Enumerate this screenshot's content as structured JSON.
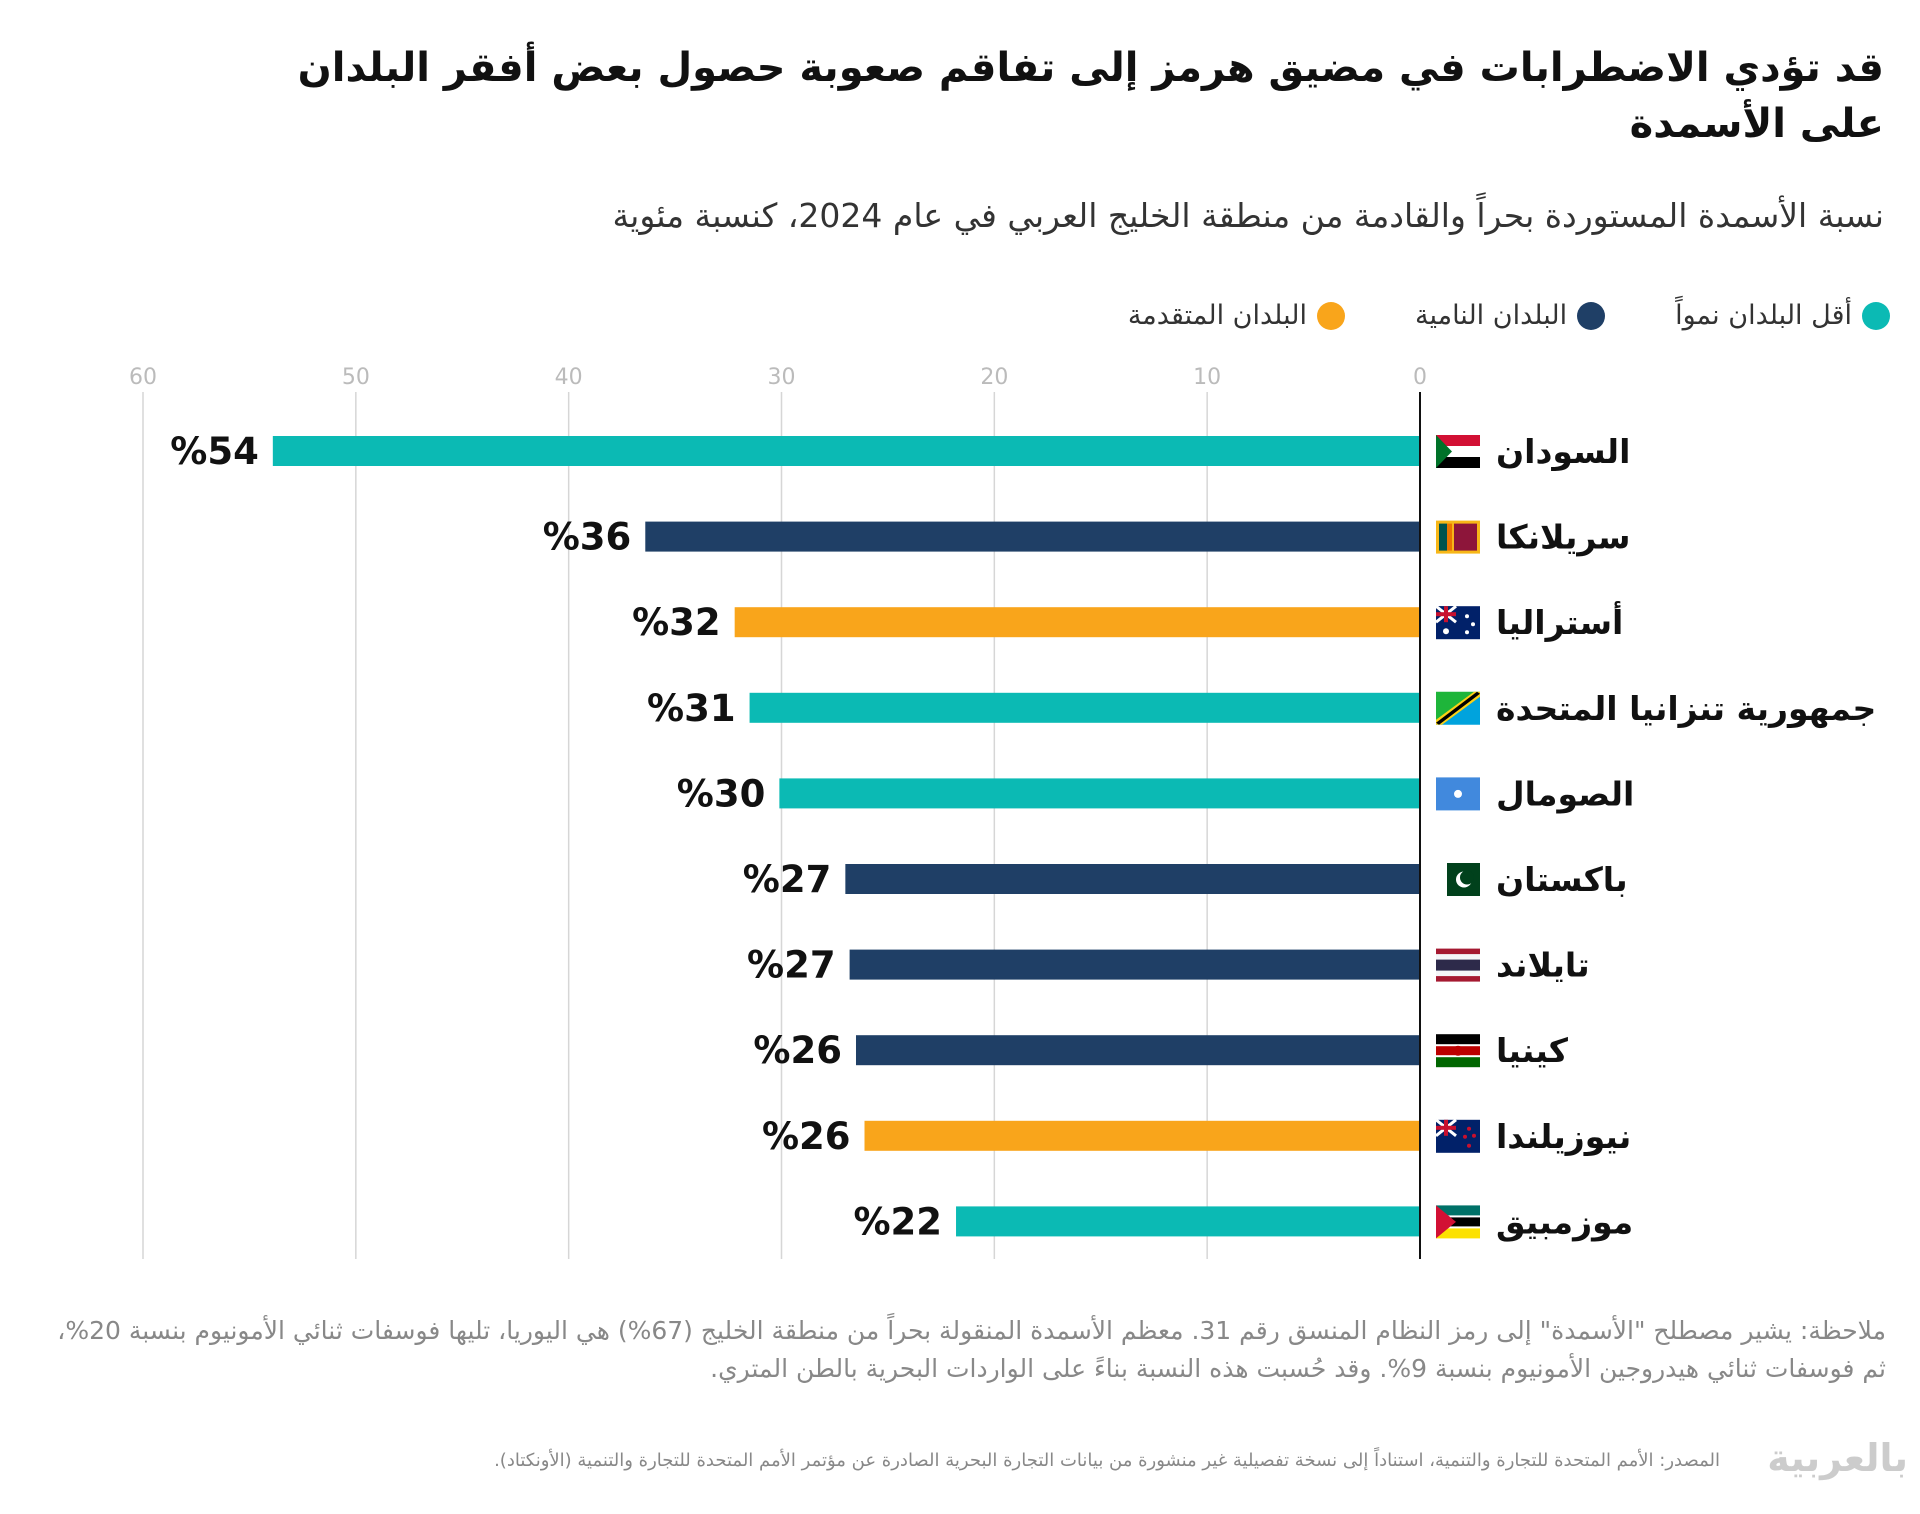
{
  "title": "قد تؤدي الاضطرابات في مضيق هرمز إلى تفاقم صعوبة حصول بعض أفقر البلدان على الأسمدة",
  "subtitle": "نسبة الأسمدة المستوردة بحراً والقادمة من منطقة الخليج العربي في عام 2024، كنسبة مئوية",
  "legend": [
    {
      "label": "أقل البلدان نمواً",
      "color": "#0bbab4"
    },
    {
      "label": "البلدان النامية",
      "color": "#1f3f66"
    },
    {
      "label": "البلدان المتقدمة",
      "color": "#f9a51b"
    }
  ],
  "chart_data": {
    "type": "bar",
    "orientation": "horizontal",
    "xlim": [
      0,
      60
    ],
    "x_direction": "right-to-left",
    "ticks": [
      "0",
      "10",
      "20",
      "30",
      "40",
      "50",
      "60"
    ],
    "grid": true,
    "legend_placement": "top",
    "categories": [
      "السودان",
      "سريلانكا",
      "أستراليا",
      "جمهورية تنزانيا المتحدة",
      "الصومال",
      "باكستان",
      "تايلاند",
      "كينيا",
      "نيوزيلندا",
      "موزمبيق"
    ],
    "flags": [
      "sudan-flag-icon",
      "sri-lanka-flag-icon",
      "australia-flag-icon",
      "tanzania-flag-icon",
      "somalia-flag-icon",
      "pakistan-flag-icon",
      "thailand-flag-icon",
      "kenya-flag-icon",
      "new-zealand-flag-icon",
      "mozambique-flag-icon"
    ],
    "values": [
      53.9,
      36.4,
      32.2,
      31.5,
      30.1,
      27.0,
      26.8,
      26.5,
      26.1,
      21.8
    ],
    "labels": [
      "%54",
      "%36",
      "%32",
      "%31",
      "%30",
      "%27",
      "%27",
      "%26",
      "%26",
      "%22"
    ],
    "groups": [
      0,
      1,
      2,
      0,
      0,
      1,
      1,
      1,
      2,
      0
    ]
  },
  "note": "ملاحظة: يشير مصطلح \"الأسمدة\" إلى رمز النظام المنسق رقم 31. معظم الأسمدة المنقولة بحراً من منطقة الخليج (67%) هي اليوريا، تليها فوسفات ثنائي الأمونيوم بنسبة 20%، ثم فوسفات ثنائي هيدروجين الأمونيوم بنسبة 9%. وقد حُسبت هذه النسبة بناءً على الواردات البحرية بالطن المتري.",
  "source": "المصدر: الأمم المتحدة للتجارة والتنمية، استناداً إلى نسخة تفصيلية غير منشورة من بيانات التجارة البحرية الصادرة عن مؤتمر الأمم المتحدة للتجارة والتنمية (الأونكتاد).",
  "logo": "CNN بالعربية"
}
